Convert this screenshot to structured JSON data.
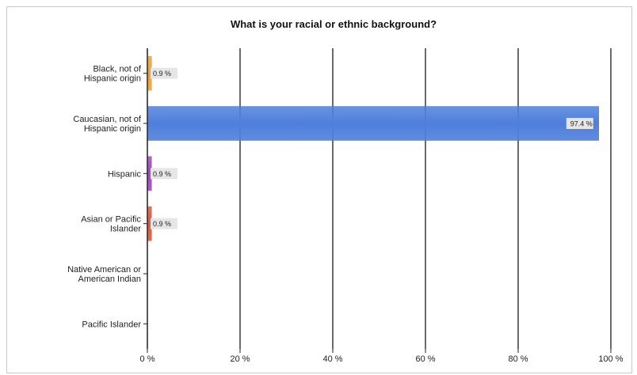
{
  "chart_data": {
    "type": "bar",
    "orientation": "horizontal",
    "title": "What is your racial or ethnic background?",
    "xlabel": "",
    "ylabel": "",
    "xlim": [
      0,
      100
    ],
    "x_ticks": [
      "0 %",
      "20 %",
      "40 %",
      "60 %",
      "80 %",
      "100 %"
    ],
    "grid": "vertical",
    "legend": "none",
    "categories": [
      [
        "Black, not of",
        "Hispanic origin"
      ],
      [
        "Caucasian, not of",
        "Hispanic origin"
      ],
      [
        "Hispanic"
      ],
      [
        "Asian or Pacific",
        "Islander"
      ],
      [
        "Native American or",
        "American Indian"
      ],
      [
        "Pacific Islander"
      ]
    ],
    "values": [
      0.9,
      97.4,
      0.9,
      0.9,
      0,
      0
    ],
    "value_labels": [
      "0.9 %",
      "97.4 %",
      "0.9 %",
      "0.9 %",
      "",
      ""
    ],
    "colors": [
      "#f0a030",
      "#4f7fdc",
      "#a447c8",
      "#e4573a",
      "#888888",
      "#888888"
    ]
  }
}
